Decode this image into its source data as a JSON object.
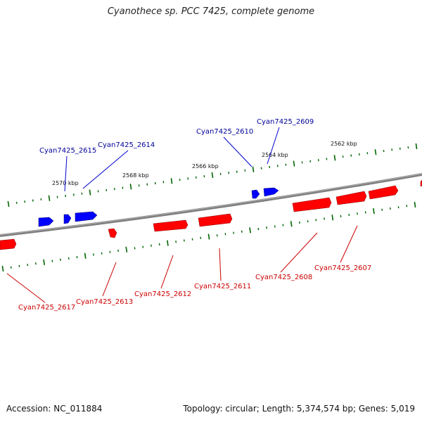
{
  "title": "Cyanothece sp. PCC 7425, complete genome",
  "footer": {
    "accession": "Accession: NC_011884",
    "summary": "Topology: circular; Length: 5,374,574 bp; Genes: 5,019"
  },
  "colors": {
    "forward_gene": "#0000ff",
    "reverse_gene": "#ff0000",
    "forward_label": "#000099",
    "reverse_label": "#cc0000",
    "backbone": "#808080",
    "tick": "#006600"
  },
  "scale_labels": [
    "2562 kbp",
    "2564 kbp",
    "2566 kbp",
    "2568 kbp",
    "2570 kbp"
  ],
  "forward_genes": [
    {
      "label": "Cyan7425_2609"
    },
    {
      "label": "Cyan7425_2610"
    },
    {
      "label": "Cyan7425_2614"
    },
    {
      "label": "Cyan7425_2615"
    }
  ],
  "reverse_genes": [
    {
      "label": "Cyan7425_2607"
    },
    {
      "label": "Cyan7425_2608"
    },
    {
      "label": "Cyan7425_2611"
    },
    {
      "label": "Cyan7425_2612"
    },
    {
      "label": "Cyan7425_2613"
    },
    {
      "label": "Cyan7425_2617"
    }
  ]
}
